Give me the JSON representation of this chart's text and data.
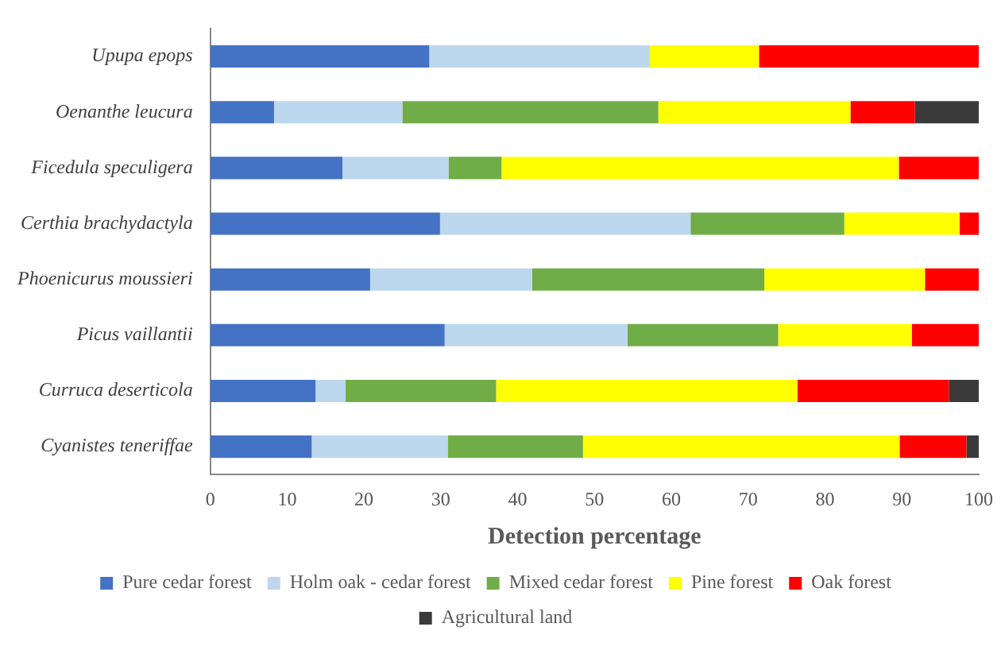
{
  "chart_data": {
    "type": "bar",
    "orientation": "horizontal",
    "stacked": true,
    "xlabel": "Detection percentage",
    "categories": [
      "Upupa epops",
      "Oenanthe leucura",
      "Ficedula speculigera",
      "Certhia brachydactyla",
      "Phoenicurus moussieri",
      "Picus vaillantii",
      "Curruca deserticola",
      "Cyanistes teneriffae"
    ],
    "series": [
      {
        "name": "Pure cedar forest",
        "color": "#4472c4",
        "values": [
          28.5,
          8.3,
          17.2,
          29.9,
          20.8,
          30.5,
          13.7,
          13.2
        ]
      },
      {
        "name": "Holm oak - cedar forest",
        "color": "#bdd7ee",
        "values": [
          28.7,
          16.7,
          13.8,
          32.6,
          21.1,
          23.8,
          3.9,
          17.7
        ]
      },
      {
        "name": "Mixed cedar forest",
        "color": "#70ad47",
        "values": [
          0,
          33.3,
          6.9,
          20,
          30.2,
          19.6,
          19.6,
          17.6
        ]
      },
      {
        "name": "Pine forest",
        "color": "#ffff00",
        "values": [
          14.2,
          25,
          51.7,
          15,
          20.9,
          17.4,
          39.2,
          41.2
        ]
      },
      {
        "name": "Oak forest",
        "color": "#ff0000",
        "values": [
          28.6,
          8.4,
          10.4,
          2.5,
          7,
          8.7,
          19.7,
          8.7
        ]
      },
      {
        "name": "Agricultural land",
        "color": "#3a3a3a",
        "values": [
          0,
          8.3,
          0,
          0,
          0,
          0,
          3.9,
          1.6
        ]
      }
    ],
    "xlim": [
      0,
      100
    ],
    "xticks": [
      0,
      10,
      20,
      30,
      40,
      50,
      60,
      70,
      80,
      90,
      100
    ],
    "grid": false,
    "legend": "bottom"
  }
}
